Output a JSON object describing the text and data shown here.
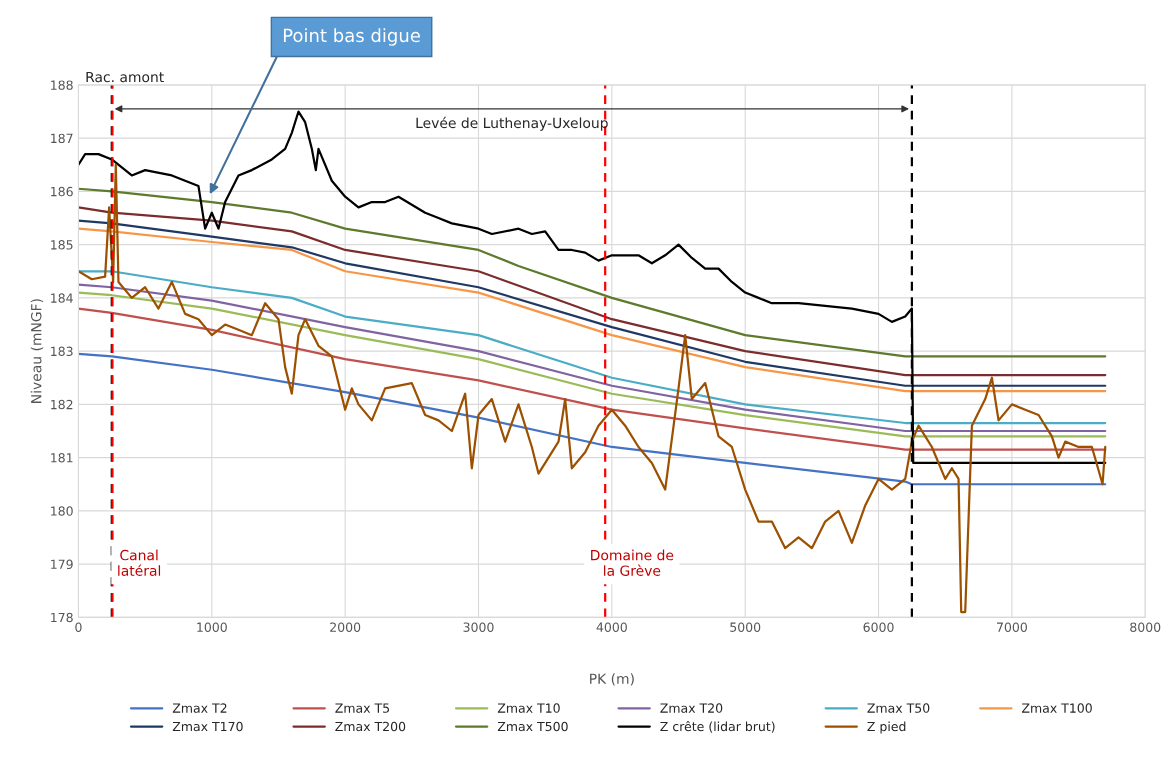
{
  "chart_data": {
    "type": "line",
    "xlabel": "PK (m)",
    "ylabel": "Niveau (mNGF)",
    "xlim": [
      0,
      8000
    ],
    "xticks": [
      0,
      1000,
      2000,
      3000,
      4000,
      5000,
      6000,
      7000,
      8000
    ],
    "ylim": [
      178,
      188
    ],
    "yticks": [
      178,
      179,
      180,
      181,
      182,
      183,
      184,
      185,
      186,
      187,
      188
    ],
    "grid": true,
    "legend": "bottom",
    "marker": "none",
    "line_style": "solid",
    "series": [
      {
        "name": "Zmax T2",
        "color": "#4472c4",
        "x": [
          0,
          250,
          1000,
          2000,
          3000,
          4000,
          5000,
          6200,
          6250,
          7700
        ],
        "values": [
          182.95,
          182.9,
          182.65,
          182.23,
          181.75,
          181.2,
          180.9,
          180.55,
          180.5,
          180.5
        ]
      },
      {
        "name": "Zmax T5",
        "color": "#c0504d",
        "x": [
          0,
          250,
          1000,
          2000,
          3000,
          4000,
          5000,
          6200,
          6250,
          7700
        ],
        "values": [
          183.8,
          183.72,
          183.4,
          182.85,
          182.45,
          181.9,
          181.55,
          181.15,
          181.15,
          181.15
        ]
      },
      {
        "name": "Zmax T10",
        "color": "#9bbb59",
        "x": [
          0,
          250,
          1000,
          2000,
          3000,
          4000,
          5000,
          6200,
          6250,
          7700
        ],
        "values": [
          184.1,
          184.05,
          183.8,
          183.3,
          182.85,
          182.2,
          181.8,
          181.4,
          181.4,
          181.4
        ]
      },
      {
        "name": "Zmax T20",
        "color": "#8064a2",
        "x": [
          0,
          250,
          1000,
          2000,
          3000,
          4000,
          5000,
          6200,
          6250,
          7700
        ],
        "values": [
          184.25,
          184.2,
          183.95,
          183.45,
          183.0,
          182.35,
          181.9,
          181.5,
          181.5,
          181.5
        ]
      },
      {
        "name": "Zmax T50",
        "color": "#4bacc6",
        "x": [
          0,
          250,
          1000,
          1600,
          2000,
          3000,
          4000,
          5000,
          6200,
          6250,
          7700
        ],
        "values": [
          184.5,
          184.5,
          184.2,
          184.0,
          183.65,
          183.3,
          182.5,
          182.0,
          181.65,
          181.65,
          181.65
        ]
      },
      {
        "name": "Zmax T100",
        "color": "#f79646",
        "x": [
          0,
          250,
          1000,
          1600,
          2000,
          3000,
          4000,
          5000,
          6200,
          6250,
          7700
        ],
        "values": [
          185.3,
          185.25,
          185.05,
          184.9,
          184.5,
          184.1,
          183.3,
          182.7,
          182.25,
          182.25,
          182.25
        ]
      },
      {
        "name": "Zmax T170",
        "color": "#1f3864",
        "x": [
          0,
          250,
          1000,
          1600,
          2000,
          3000,
          4000,
          5000,
          6200,
          6250,
          7700
        ],
        "values": [
          185.45,
          185.4,
          185.15,
          184.95,
          184.65,
          184.2,
          183.45,
          182.8,
          182.35,
          182.35,
          182.35
        ]
      },
      {
        "name": "Zmax T200",
        "color": "#7b2c2c",
        "x": [
          0,
          250,
          1000,
          1600,
          2000,
          3000,
          4000,
          5000,
          6200,
          6250,
          7700
        ],
        "values": [
          185.7,
          185.6,
          185.45,
          185.25,
          184.9,
          184.5,
          183.6,
          183.0,
          182.55,
          182.55,
          182.55
        ]
      },
      {
        "name": "Zmax T500",
        "color": "#5e7a2c",
        "x": [
          0,
          250,
          1000,
          1600,
          2000,
          3000,
          3300,
          4000,
          5000,
          6200,
          6250,
          7700
        ],
        "values": [
          186.05,
          186.0,
          185.8,
          185.6,
          185.3,
          184.9,
          184.6,
          184.0,
          183.3,
          182.9,
          182.9,
          182.9
        ]
      },
      {
        "name": "Z crête (lidar brut)",
        "color": "#000000",
        "x": [
          0,
          50,
          150,
          250,
          400,
          500,
          700,
          900,
          950,
          1000,
          1050,
          1100,
          1200,
          1300,
          1450,
          1550,
          1600,
          1650,
          1700,
          1750,
          1780,
          1800,
          1900,
          2000,
          2100,
          2200,
          2300,
          2400,
          2600,
          2700,
          2800,
          3000,
          3100,
          3300,
          3400,
          3500,
          3600,
          3700,
          3800,
          3900,
          4000,
          4200,
          4300,
          4400,
          4500,
          4600,
          4700,
          4800,
          4900,
          5000,
          5100,
          5200,
          5400,
          5600,
          5800,
          6000,
          6100,
          6200,
          6250,
          6260,
          7700
        ],
        "values": [
          186.5,
          186.7,
          186.7,
          186.6,
          186.3,
          186.4,
          186.3,
          186.1,
          185.3,
          185.6,
          185.3,
          185.8,
          186.3,
          186.4,
          186.6,
          186.8,
          187.1,
          187.5,
          187.3,
          186.8,
          186.4,
          186.8,
          186.2,
          185.9,
          185.7,
          185.8,
          185.8,
          185.9,
          185.6,
          185.5,
          185.4,
          185.3,
          185.2,
          185.3,
          185.2,
          185.25,
          184.9,
          184.9,
          184.85,
          184.7,
          184.8,
          184.8,
          184.65,
          184.8,
          185.0,
          184.75,
          184.55,
          184.55,
          184.3,
          184.1,
          184.0,
          183.9,
          183.9,
          183.85,
          183.8,
          183.7,
          183.55,
          183.65,
          183.8,
          180.9,
          180.9
        ]
      },
      {
        "name": "Z pied",
        "color": "#9c5000",
        "x": [
          0,
          100,
          200,
          230,
          260,
          280,
          300,
          400,
          500,
          600,
          700,
          800,
          900,
          1000,
          1100,
          1200,
          1300,
          1400,
          1500,
          1550,
          1600,
          1650,
          1700,
          1800,
          1900,
          2000,
          2050,
          2100,
          2200,
          2300,
          2500,
          2600,
          2700,
          2800,
          2900,
          2950,
          3000,
          3100,
          3200,
          3300,
          3400,
          3450,
          3600,
          3650,
          3700,
          3800,
          3900,
          4000,
          4100,
          4200,
          4300,
          4400,
          4500,
          4550,
          4600,
          4700,
          4800,
          4900,
          5000,
          5100,
          5200,
          5300,
          5400,
          5500,
          5600,
          5700,
          5800,
          5900,
          6000,
          6100,
          6200,
          6250,
          6300,
          6400,
          6500,
          6550,
          6600,
          6620,
          6650,
          6700,
          6800,
          6850,
          6900,
          7000,
          7100,
          7200,
          7300,
          7350,
          7400,
          7500,
          7600,
          7680,
          7700
        ],
        "values": [
          184.5,
          184.35,
          184.4,
          185.7,
          184.3,
          186.5,
          184.3,
          184.0,
          184.2,
          183.8,
          184.3,
          183.7,
          183.6,
          183.3,
          183.5,
          183.4,
          183.3,
          183.9,
          183.6,
          182.7,
          182.2,
          183.3,
          183.6,
          183.1,
          182.9,
          181.9,
          182.3,
          182.0,
          181.7,
          182.3,
          182.4,
          181.8,
          181.7,
          181.5,
          182.2,
          180.8,
          181.8,
          182.1,
          181.3,
          182.0,
          181.2,
          180.7,
          181.3,
          182.1,
          180.8,
          181.1,
          181.6,
          181.9,
          181.6,
          181.2,
          180.9,
          180.4,
          182.3,
          183.3,
          182.1,
          182.4,
          181.4,
          181.2,
          180.4,
          179.8,
          179.8,
          179.3,
          179.5,
          179.3,
          179.8,
          180.0,
          179.4,
          180.1,
          180.6,
          180.4,
          180.6,
          181.3,
          181.6,
          181.2,
          180.6,
          180.8,
          180.6,
          178.1,
          178.1,
          181.6,
          182.1,
          182.5,
          181.7,
          182.0,
          181.9,
          181.8,
          181.4,
          181.0,
          181.3,
          181.2,
          181.2,
          180.5,
          181.2
        ]
      }
    ],
    "ref_lines": [
      {
        "axis": "x",
        "value": 250,
        "label": "Rac. amont",
        "color": "#000000",
        "line_style": "dashed"
      },
      {
        "axis": "x",
        "value": 6250,
        "label": null,
        "color": "#000000",
        "line_style": "dashed"
      },
      {
        "axis": "x",
        "value": 255,
        "label": "Canal\nlatéral",
        "color": "#ff0000",
        "line_style": "dashed"
      },
      {
        "axis": "x",
        "value": 3950,
        "label": "Domaine de\nla Grève",
        "color": "#ff0000",
        "line_style": "dashed"
      }
    ],
    "annotations": [
      "Levée de Luthenay-Uxeloup",
      "Point bas digue"
    ]
  }
}
